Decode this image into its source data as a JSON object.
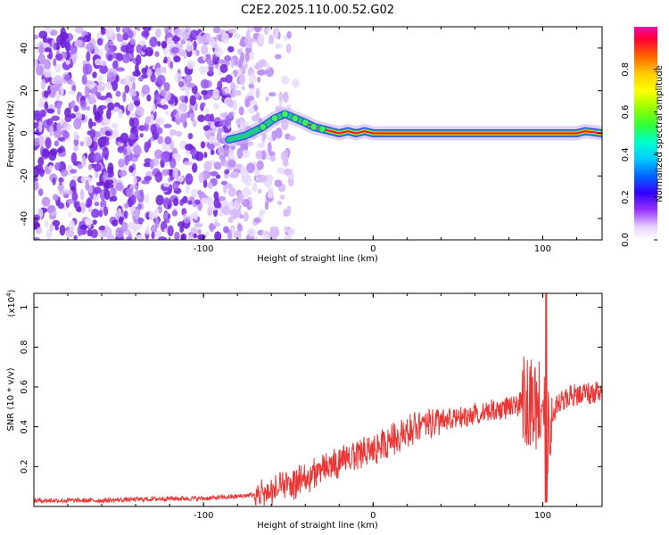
{
  "title": "C2E2.2025.110.00.52.G02",
  "chart_data": [
    {
      "type": "heatmap",
      "xlabel": "Height of straight line (km)",
      "ylabel": "Frequency (Hz)",
      "xlim": [
        -200,
        135
      ],
      "ylim": [
        -50,
        50
      ],
      "xticks": [
        -100,
        0,
        100
      ],
      "yticks": [
        -40,
        -20,
        0,
        20,
        40
      ],
      "colorbar": {
        "label": "Normalized spectral amplitude",
        "range": [
          0,
          1
        ],
        "ticks": [
          "0.0",
          "0.2",
          "0.4",
          "0.6",
          "0.8"
        ]
      },
      "noise_region_x": [
        -200,
        -45
      ],
      "dominant_frequency_track": {
        "x": [
          -85,
          -75,
          -65,
          -58,
          -52,
          -46,
          -40,
          -35,
          -30,
          -25,
          -20,
          -15,
          -10,
          -5,
          0,
          20,
          40,
          60,
          80,
          95,
          100,
          110,
          120,
          125,
          135
        ],
        "y": [
          -3,
          -1,
          3,
          7,
          9,
          7,
          5,
          3,
          2,
          1,
          0,
          1,
          0,
          1,
          0,
          0,
          0,
          0,
          0,
          0,
          0,
          0,
          0,
          1,
          0
        ]
      }
    },
    {
      "type": "line",
      "xlabel": "Height of straight line (km)",
      "ylabel": "SNR (10 * v/v)",
      "y_multiplier_label": "(x10",
      "y_multiplier_exp": "4",
      "y_multiplier_close": ")",
      "xlim": [
        -200,
        135
      ],
      "ylim": [
        0,
        1.07
      ],
      "xticks": [
        -100,
        0,
        100
      ],
      "yticks": [
        0.2,
        0.4,
        0.6,
        0.8,
        1.0
      ],
      "ytick_labels": [
        "0.2",
        "0.4",
        "0.6",
        "0.8",
        "1"
      ],
      "series": [
        {
          "color": "#ee3333",
          "x": [
            -200,
            -180,
            -160,
            -140,
            -120,
            -100,
            -80,
            -70,
            -60,
            -50,
            -40,
            -30,
            -20,
            -10,
            0,
            10,
            20,
            30,
            40,
            50,
            60,
            70,
            80,
            90,
            95,
            100,
            102,
            104,
            108,
            115,
            125,
            135
          ],
          "y": [
            0.03,
            0.03,
            0.03,
            0.035,
            0.04,
            0.04,
            0.05,
            0.06,
            0.08,
            0.1,
            0.14,
            0.18,
            0.22,
            0.26,
            0.28,
            0.33,
            0.38,
            0.41,
            0.43,
            0.44,
            0.46,
            0.48,
            0.5,
            0.52,
            0.53,
            0.55,
            0.45,
            0.3,
            0.52,
            0.55,
            0.57,
            0.58
          ]
        }
      ]
    }
  ]
}
